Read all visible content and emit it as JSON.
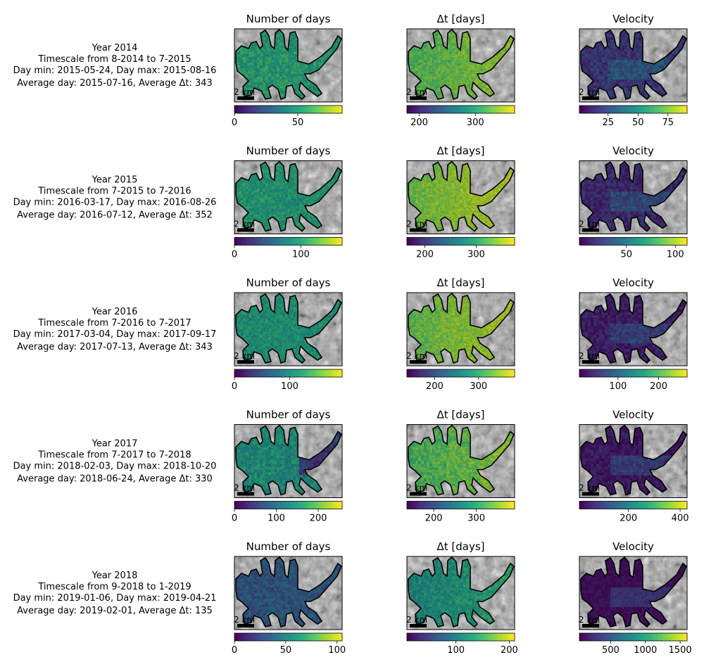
{
  "figure": {
    "rows": [
      {
        "info": [
          "Year 2014",
          "Timescale from 8-2014 to 7-2015",
          "Day min: 2015-05-24, Day max: 2015-08-16",
          "Average day: 2015-07-16, Average Δt: 343"
        ],
        "panels": [
          {
            "title": "Number of days",
            "scalebar": "2 km",
            "colorbar": {
              "range": [
                0,
                85
              ],
              "ticks": [
                0,
                50
              ],
              "tick_labels": [
                "0",
                "50"
              ]
            }
          },
          {
            "title": "Δt [days]",
            "scalebar": "2 km",
            "colorbar": {
              "range": [
                178,
                370
              ],
              "ticks": [
                200,
                300
              ],
              "tick_labels": [
                "200",
                "300"
              ]
            }
          },
          {
            "title": "Velocity",
            "scalebar": "2 km",
            "colorbar": {
              "range": [
                1,
                91
              ],
              "ticks": [
                25,
                50,
                75
              ],
              "tick_labels": [
                "25",
                "50",
                "75"
              ]
            }
          }
        ]
      },
      {
        "info": [
          "Year 2015",
          "Timescale from 7-2015 to 7-2016",
          "Day min: 2016-03-17, Day max: 2016-08-26",
          "Average day: 2016-07-12, Average Δt: 352"
        ],
        "panels": [
          {
            "title": "Number of days",
            "scalebar": "2 km",
            "colorbar": {
              "range": [
                0,
                162
              ],
              "ticks": [
                0,
                100
              ],
              "tick_labels": [
                "0",
                "100"
              ]
            }
          },
          {
            "title": "Δt [days]",
            "scalebar": "2 km",
            "colorbar": {
              "range": [
                165,
                375
              ],
              "ticks": [
                200,
                300
              ],
              "tick_labels": [
                "200",
                "300"
              ]
            }
          },
          {
            "title": "Velocity",
            "scalebar": "2 km",
            "colorbar": {
              "range": [
                2,
                112
              ],
              "ticks": [
                50,
                100
              ],
              "tick_labels": [
                "50",
                "100"
              ]
            }
          }
        ]
      },
      {
        "info": [
          "Year 2016",
          "Timescale from 7-2016 to 7-2017",
          "Day min: 2017-03-04, Day max: 2017-09-17",
          "Average day: 2017-07-13, Average Δt: 343"
        ],
        "panels": [
          {
            "title": "Number of days",
            "scalebar": "2 km",
            "colorbar": {
              "range": [
                0,
                195
              ],
              "ticks": [
                0,
                100
              ],
              "tick_labels": [
                "0",
                "100"
              ]
            }
          },
          {
            "title": "Δt [days]",
            "scalebar": "2 km",
            "colorbar": {
              "range": [
                137,
                382
              ],
              "ticks": [
                200,
                300
              ],
              "tick_labels": [
                "200",
                "300"
              ]
            }
          },
          {
            "title": "Velocity",
            "scalebar": "2 km",
            "colorbar": {
              "range": [
                5,
                270
              ],
              "ticks": [
                100,
                200
              ],
              "tick_labels": [
                "100",
                "200"
              ]
            }
          }
        ]
      },
      {
        "info": [
          "Year 2017",
          "Timescale from 7-2017 to 7-2018",
          "Day min: 2018-02-03, Day max: 2018-10-20",
          "Average day: 2018-06-24, Average Δt: 330"
        ],
        "panels": [
          {
            "title": "Number of days",
            "scalebar": "2 km",
            "colorbar": {
              "range": [
                0,
                257
              ],
              "ticks": [
                0,
                100,
                200
              ],
              "tick_labels": [
                "0",
                "100",
                "200"
              ]
            }
          },
          {
            "title": "Δt [days]",
            "scalebar": "2 km",
            "colorbar": {
              "range": [
                137,
                390
              ],
              "ticks": [
                200,
                300
              ],
              "tick_labels": [
                "200",
                "300"
              ]
            }
          },
          {
            "title": "Velocity",
            "scalebar": "2 km",
            "colorbar": {
              "range": [
                10,
                427
              ],
              "ticks": [
                200,
                400
              ],
              "tick_labels": [
                "200",
                "400"
              ]
            }
          }
        ]
      },
      {
        "info": [
          "Year 2018",
          "Timescale from 9-2018 to 1-2019",
          "Day min: 2019-01-06, Day max: 2019-04-21",
          "Average day: 2019-02-01, Average Δt: 135"
        ],
        "panels": [
          {
            "title": "Number of days",
            "scalebar": "2 km",
            "colorbar": {
              "range": [
                0,
                105
              ],
              "ticks": [
                0,
                50,
                100
              ],
              "tick_labels": [
                "0",
                "50",
                "100"
              ]
            }
          },
          {
            "title": "Δt [days]",
            "scalebar": "2 km",
            "colorbar": {
              "range": [
                8,
                210
              ],
              "ticks": [
                100,
                200
              ],
              "tick_labels": [
                "100",
                "200"
              ]
            }
          },
          {
            "title": "Velocity",
            "scalebar": "2 km",
            "colorbar": {
              "range": [
                50,
                1600
              ],
              "ticks": [
                500,
                1000,
                1500
              ],
              "tick_labels": [
                "500",
                "1000",
                "1500"
              ]
            }
          }
        ]
      }
    ]
  },
  "chart_data": {
    "type": "heatmap",
    "colormap": "viridis",
    "background": "hillshade",
    "row_years": [
      "2014",
      "2015",
      "2016",
      "2017",
      "2018"
    ],
    "panel_titles": [
      "Number of days",
      "Δt [days]",
      "Velocity"
    ],
    "colors": {
      "viridis": [
        "#440154",
        "#472d7b",
        "#3b528b",
        "#2c728e",
        "#21918c",
        "#28ae80",
        "#5ec962",
        "#addc30",
        "#fde725"
      ],
      "outline": "#000000",
      "frame": "#000000",
      "text": "#000000"
    }
  }
}
